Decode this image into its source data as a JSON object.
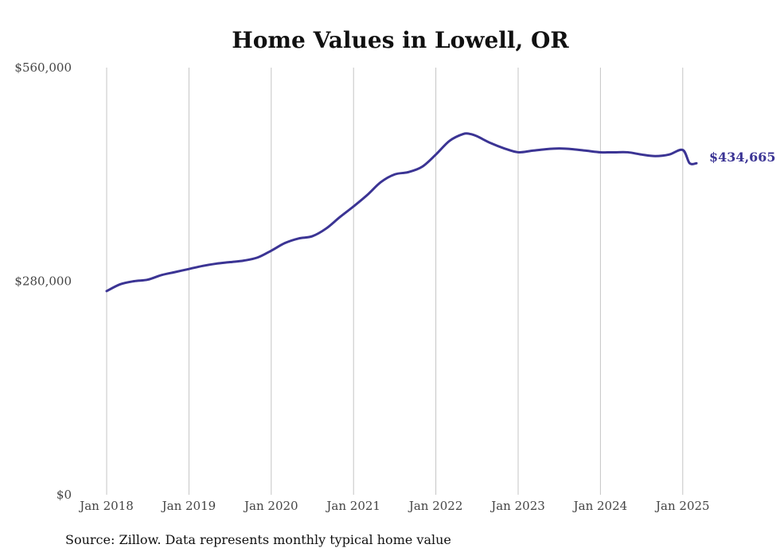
{
  "chart_data": {
    "type": "line",
    "title": "Home Values in Lowell, OR",
    "source": "Source: Zillow. Data represents monthly typical home value",
    "ylim": [
      0,
      560000
    ],
    "y_ticks": [
      {
        "value": 0,
        "label": "$0"
      },
      {
        "value": 280000,
        "label": "$280,000"
      },
      {
        "value": 560000,
        "label": "$560,000"
      }
    ],
    "x_ticks": [
      {
        "value": "2018-01",
        "label": "Jan 2018"
      },
      {
        "value": "2019-01",
        "label": "Jan 2019"
      },
      {
        "value": "2020-01",
        "label": "Jan 2020"
      },
      {
        "value": "2021-01",
        "label": "Jan 2021"
      },
      {
        "value": "2022-01",
        "label": "Jan 2022"
      },
      {
        "value": "2023-01",
        "label": "Jan 2023"
      },
      {
        "value": "2024-01",
        "label": "Jan 2024"
      },
      {
        "value": "2025-01",
        "label": "Jan 2025"
      }
    ],
    "grid": "vertical",
    "line_color": "#3b3494",
    "end_label": "$434,665",
    "series": [
      {
        "x": [
          "2018-01",
          "2018-03",
          "2018-05",
          "2018-07",
          "2018-09",
          "2018-11",
          "2019-01",
          "2019-03",
          "2019-05",
          "2019-07",
          "2019-09",
          "2019-11",
          "2020-01",
          "2020-03",
          "2020-05",
          "2020-07",
          "2020-09",
          "2020-11",
          "2021-01",
          "2021-03",
          "2021-05",
          "2021-07",
          "2021-09",
          "2021-11",
          "2022-01",
          "2022-03",
          "2022-05",
          "2022-06",
          "2022-07",
          "2022-09",
          "2022-11",
          "2023-01",
          "2023-03",
          "2023-05",
          "2023-07",
          "2023-09",
          "2023-11",
          "2024-01",
          "2024-03",
          "2024-05",
          "2024-07",
          "2024-09",
          "2024-11",
          "2025-01",
          "2025-02",
          "2025-03"
        ],
        "values": [
          267000,
          276000,
          280000,
          282000,
          288000,
          292000,
          296000,
          300000,
          303000,
          305000,
          307000,
          311000,
          320000,
          330000,
          336000,
          339000,
          349000,
          364000,
          378000,
          393000,
          410000,
          420000,
          423000,
          430000,
          446000,
          464000,
          473000,
          473000,
          470000,
          461000,
          454000,
          449000,
          451000,
          453000,
          454000,
          453000,
          451000,
          449000,
          449000,
          449000,
          446000,
          444000,
          446000,
          452000,
          434665,
          434665
        ],
        "values_note": ""
      }
    ]
  }
}
